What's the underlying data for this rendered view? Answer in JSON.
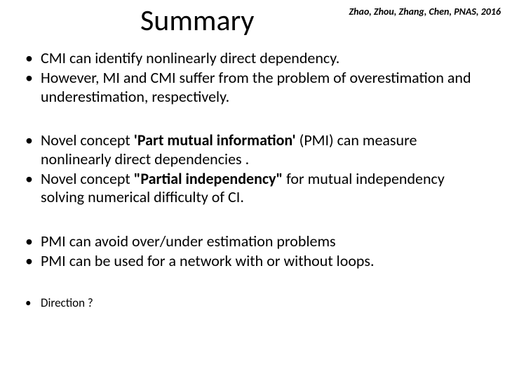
{
  "header": {
    "title": "Summary",
    "citation": "Zhao, Zhou, Zhang, Chen, PNAS, 2016"
  },
  "bullets": {
    "g1": {
      "item1": "CMI can identify  nonlinearly direct dependency.",
      "item2": "However, MI and CMI suffer from the problem of overestimation and underestimation, respectively."
    },
    "g2": {
      "item1_pre": "Novel concept ",
      "item1_bold": "'Part mutual information'",
      "item1_post": " (PMI)  can measure nonlinearly direct dependencies .",
      "item2_pre": "Novel concept ",
      "item2_bold": "\"Partial independency\"",
      "item2_post": " for mutual independency solving numerical difficulty of CI."
    },
    "g3": {
      "item1": "PMI can avoid over/under estimation problems",
      "item2": "PMI can be used for a network with or without loops."
    },
    "g4": {
      "item1": "Direction ?"
    }
  },
  "style": {
    "background": "#ffffff",
    "text_color": "#000000",
    "title_fontsize": 42,
    "body_fontsize": 22,
    "small_fontsize": 17,
    "citation_fontsize": 14
  }
}
